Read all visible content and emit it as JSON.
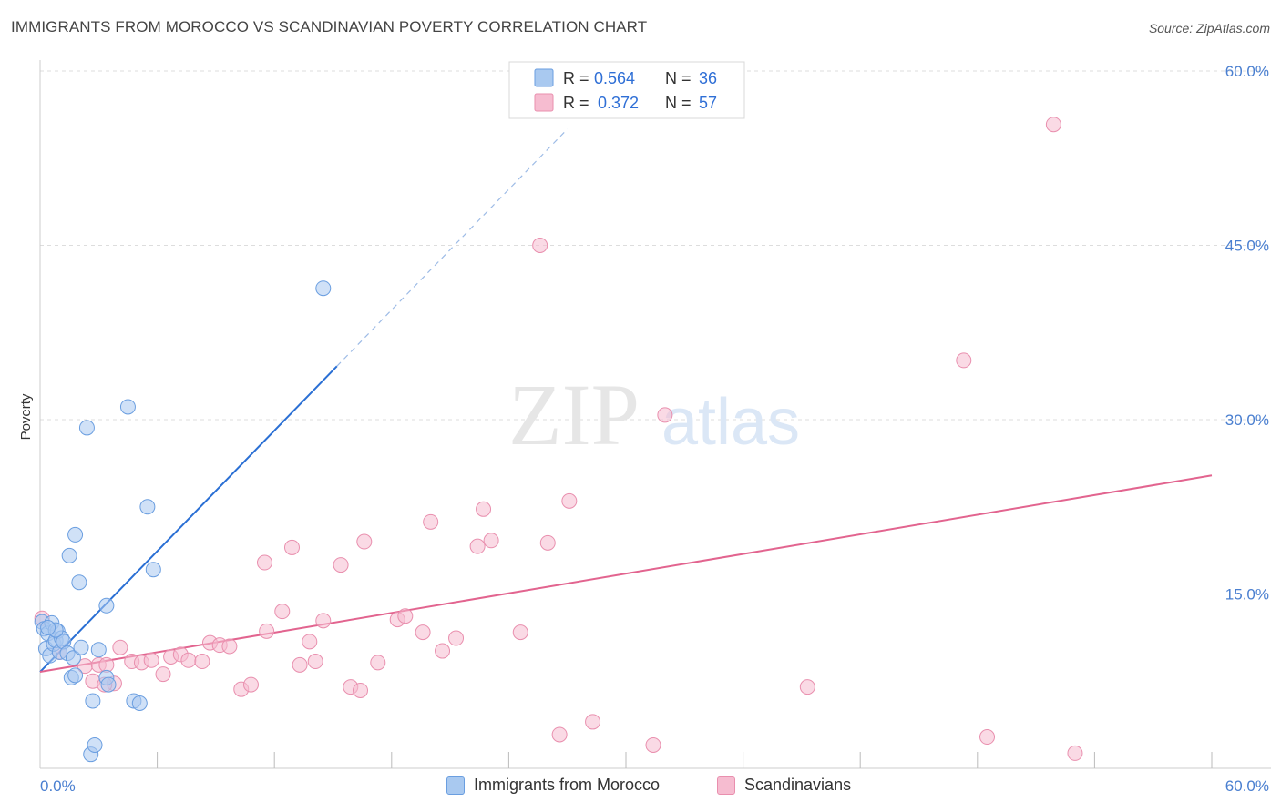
{
  "title": "IMMIGRANTS FROM MOROCCO VS SCANDINAVIAN POVERTY CORRELATION CHART",
  "source": "Source: ZipAtlas.com",
  "watermark": {
    "zip": "ZIP",
    "atlas": "atlas"
  },
  "colors": {
    "blue_fill": "#a9c9f0",
    "blue_stroke": "#6a9ee0",
    "blue_line": "#2a6fd4",
    "pink_fill": "#f6bcd0",
    "pink_stroke": "#e98fae",
    "pink_line": "#e2648f",
    "grid": "#dddddd",
    "tick": "#4a7fd0"
  },
  "legend_top": [
    {
      "r_label": "R =",
      "r_value": "0.564",
      "n_label": "N =",
      "n_value": "36",
      "color": "#a9c9f0"
    },
    {
      "r_label": "R =",
      "r_value": "0.372",
      "n_label": "N =",
      "n_value": "57",
      "color": "#f6bcd0"
    }
  ],
  "chart_data": {
    "type": "scatter",
    "title": "IMMIGRANTS FROM MOROCCO VS SCANDINAVIAN POVERTY CORRELATION CHART",
    "xlabel": "",
    "ylabel": "Poverty",
    "xlim": [
      0,
      60
    ],
    "ylim": [
      0,
      60
    ],
    "x_tick_labels": [
      "0.0%",
      "60.0%"
    ],
    "y_tick_labels": [
      "15.0%",
      "30.0%",
      "45.0%",
      "60.0%"
    ],
    "y_ticks": [
      15,
      30,
      45,
      60
    ],
    "grid": true,
    "series": [
      {
        "name": "Immigrants from Morocco",
        "color": "#a9c9f0",
        "r": 0.564,
        "n": 36,
        "trend": {
          "x": [
            0.0,
            15.2
          ],
          "y": [
            8.3,
            34.6
          ],
          "dashed_to": [
            27.0,
            55.0
          ]
        },
        "points": [
          [
            0.1,
            12.6
          ],
          [
            0.2,
            12.0
          ],
          [
            0.3,
            10.3
          ],
          [
            0.4,
            11.6
          ],
          [
            0.5,
            9.7
          ],
          [
            0.6,
            12.5
          ],
          [
            0.7,
            10.7
          ],
          [
            0.8,
            11.0
          ],
          [
            0.9,
            11.8
          ],
          [
            1.0,
            10.0
          ],
          [
            1.1,
            11.2
          ],
          [
            1.2,
            10.9
          ],
          [
            1.4,
            9.9
          ],
          [
            1.6,
            7.8
          ],
          [
            1.7,
            9.5
          ],
          [
            1.8,
            8.0
          ],
          [
            2.1,
            10.4
          ],
          [
            2.4,
            29.3
          ],
          [
            2.6,
            1.2
          ],
          [
            2.7,
            5.8
          ],
          [
            2.8,
            2.0
          ],
          [
            1.5,
            18.3
          ],
          [
            1.8,
            20.1
          ],
          [
            2.0,
            16.0
          ],
          [
            3.0,
            10.2
          ],
          [
            3.4,
            7.8
          ],
          [
            3.5,
            7.2
          ],
          [
            3.4,
            14.0
          ],
          [
            4.5,
            31.1
          ],
          [
            4.8,
            5.8
          ],
          [
            5.1,
            5.6
          ],
          [
            5.5,
            22.5
          ],
          [
            5.8,
            17.1
          ],
          [
            14.5,
            41.3
          ],
          [
            0.8,
            11.9
          ],
          [
            0.4,
            12.1
          ]
        ]
      },
      {
        "name": "Scandinavians",
        "color": "#f6bcd0",
        "r": 0.372,
        "n": 57,
        "trend": {
          "x": [
            0.0,
            60.0
          ],
          "y": [
            8.3,
            25.2
          ]
        },
        "points": [
          [
            0.1,
            12.9
          ],
          [
            1.0,
            10.0
          ],
          [
            2.3,
            8.8
          ],
          [
            2.7,
            7.5
          ],
          [
            3.0,
            8.9
          ],
          [
            3.4,
            8.9
          ],
          [
            3.8,
            7.3
          ],
          [
            4.1,
            10.4
          ],
          [
            4.7,
            9.2
          ],
          [
            5.2,
            9.1
          ],
          [
            5.7,
            9.3
          ],
          [
            6.3,
            8.1
          ],
          [
            6.7,
            9.6
          ],
          [
            7.2,
            9.8
          ],
          [
            7.6,
            9.3
          ],
          [
            8.3,
            9.2
          ],
          [
            8.7,
            10.8
          ],
          [
            9.2,
            10.6
          ],
          [
            9.7,
            10.5
          ],
          [
            10.3,
            6.8
          ],
          [
            10.8,
            7.2
          ],
          [
            11.5,
            17.7
          ],
          [
            11.6,
            11.8
          ],
          [
            12.4,
            13.5
          ],
          [
            12.9,
            19.0
          ],
          [
            13.3,
            8.9
          ],
          [
            13.8,
            10.9
          ],
          [
            14.1,
            9.2
          ],
          [
            14.5,
            12.7
          ],
          [
            15.4,
            17.5
          ],
          [
            15.9,
            7.0
          ],
          [
            16.4,
            6.7
          ],
          [
            16.6,
            19.5
          ],
          [
            17.3,
            9.1
          ],
          [
            18.3,
            12.8
          ],
          [
            18.7,
            13.1
          ],
          [
            19.6,
            11.7
          ],
          [
            20.0,
            21.2
          ],
          [
            20.6,
            10.1
          ],
          [
            21.3,
            11.2
          ],
          [
            22.4,
            19.1
          ],
          [
            22.7,
            22.3
          ],
          [
            23.1,
            19.6
          ],
          [
            24.6,
            11.7
          ],
          [
            25.6,
            45.0
          ],
          [
            26.0,
            19.4
          ],
          [
            26.6,
            2.9
          ],
          [
            27.1,
            23.0
          ],
          [
            28.3,
            4.0
          ],
          [
            31.4,
            2.0
          ],
          [
            32.0,
            30.4
          ],
          [
            39.3,
            7.0
          ],
          [
            47.3,
            35.1
          ],
          [
            48.5,
            2.7
          ],
          [
            51.9,
            55.4
          ],
          [
            53.0,
            1.3
          ],
          [
            3.3,
            7.2
          ]
        ]
      }
    ]
  },
  "bottom_legend": [
    {
      "label": "Immigrants from Morocco",
      "fill": "#a9c9f0",
      "stroke": "#6a9ee0"
    },
    {
      "label": "Scandinavians",
      "fill": "#f6bcd0",
      "stroke": "#e98fae"
    }
  ]
}
